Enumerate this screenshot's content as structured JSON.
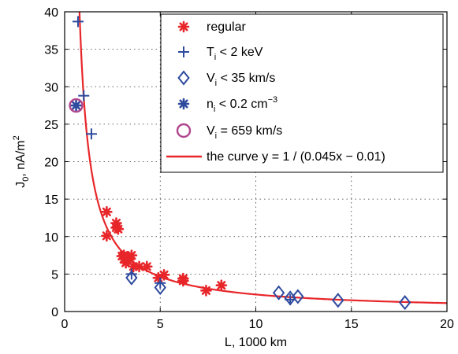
{
  "chart_data": {
    "type": "scatter",
    "title": "",
    "xlabel": "L, 1000 km",
    "ylabel_main": "J",
    "ylabel_sub": "0",
    "ylabel_rest": ", nA/m",
    "ylabel_sup": "2",
    "xlim": [
      0,
      20
    ],
    "ylim": [
      0,
      40
    ],
    "xticks": [
      "0",
      "5",
      "10",
      "15",
      "20"
    ],
    "yticks": [
      "0",
      "5",
      "10",
      "15",
      "20",
      "25",
      "30",
      "35",
      "40"
    ],
    "grid": true,
    "legend_position": "top-right",
    "colors": {
      "regular": "#e8262a",
      "blue": "#2e4a9e",
      "magenta": "#b0468e",
      "curve": "#e8262a"
    },
    "series": [
      {
        "key": "regular",
        "marker": "asterisk",
        "legend": {
          "text": "regular"
        },
        "points": [
          [
            2.2,
            13.3
          ],
          [
            2.2,
            10.1
          ],
          [
            2.7,
            11.8
          ],
          [
            2.7,
            11.2
          ],
          [
            2.8,
            11.0
          ],
          [
            3.1,
            7.5
          ],
          [
            3.1,
            7.0
          ],
          [
            3.2,
            6.5
          ],
          [
            3.3,
            7.3
          ],
          [
            3.4,
            7.0
          ],
          [
            3.5,
            7.5
          ],
          [
            3.6,
            6.0
          ],
          [
            3.9,
            6.0
          ],
          [
            4.3,
            6.0
          ],
          [
            4.9,
            4.5
          ],
          [
            5.2,
            4.9
          ],
          [
            6.2,
            4.4
          ],
          [
            6.2,
            4.1
          ],
          [
            7.4,
            2.8
          ],
          [
            8.2,
            3.5
          ],
          [
            3.3,
            6.8
          ],
          [
            3.0,
            7.4
          ]
        ]
      },
      {
        "key": "ti",
        "marker": "plus",
        "legend": {
          "main": "T",
          "sub": "i",
          "rest": " < 2 keV",
          "sup": ""
        },
        "points": [
          [
            0.7,
            38.7
          ],
          [
            1.0,
            28.8
          ],
          [
            1.4,
            23.7
          ],
          [
            3.5,
            5.0
          ],
          [
            5.0,
            3.8
          ],
          [
            11.8,
            1.6
          ]
        ]
      },
      {
        "key": "vi",
        "marker": "diamond",
        "legend": {
          "main": "V",
          "sub": "i",
          "rest": " < 35 km/s",
          "sup": ""
        },
        "points": [
          [
            3.5,
            4.5
          ],
          [
            5.0,
            3.2
          ],
          [
            11.2,
            2.5
          ],
          [
            11.8,
            1.8
          ],
          [
            12.2,
            2.0
          ],
          [
            14.3,
            1.5
          ],
          [
            17.8,
            1.2
          ]
        ]
      },
      {
        "key": "ni",
        "marker": "blue-asterisk",
        "legend": {
          "main": "n",
          "sub": "i",
          "rest": " < 0.2 cm",
          "sup": "−3"
        },
        "points": [
          [
            0.6,
            27.5
          ]
        ]
      },
      {
        "key": "vfast",
        "marker": "circle",
        "legend": {
          "main": "V",
          "sub": "i",
          "rest": " = 659 km/s",
          "sup": ""
        },
        "points": [
          [
            0.6,
            27.5
          ]
        ]
      }
    ],
    "curve": {
      "label": "the curve y = 1 / (0.045x − 0.01)",
      "a": 0.045,
      "b": 0.01,
      "x_range": [
        0.57,
        20
      ]
    }
  }
}
